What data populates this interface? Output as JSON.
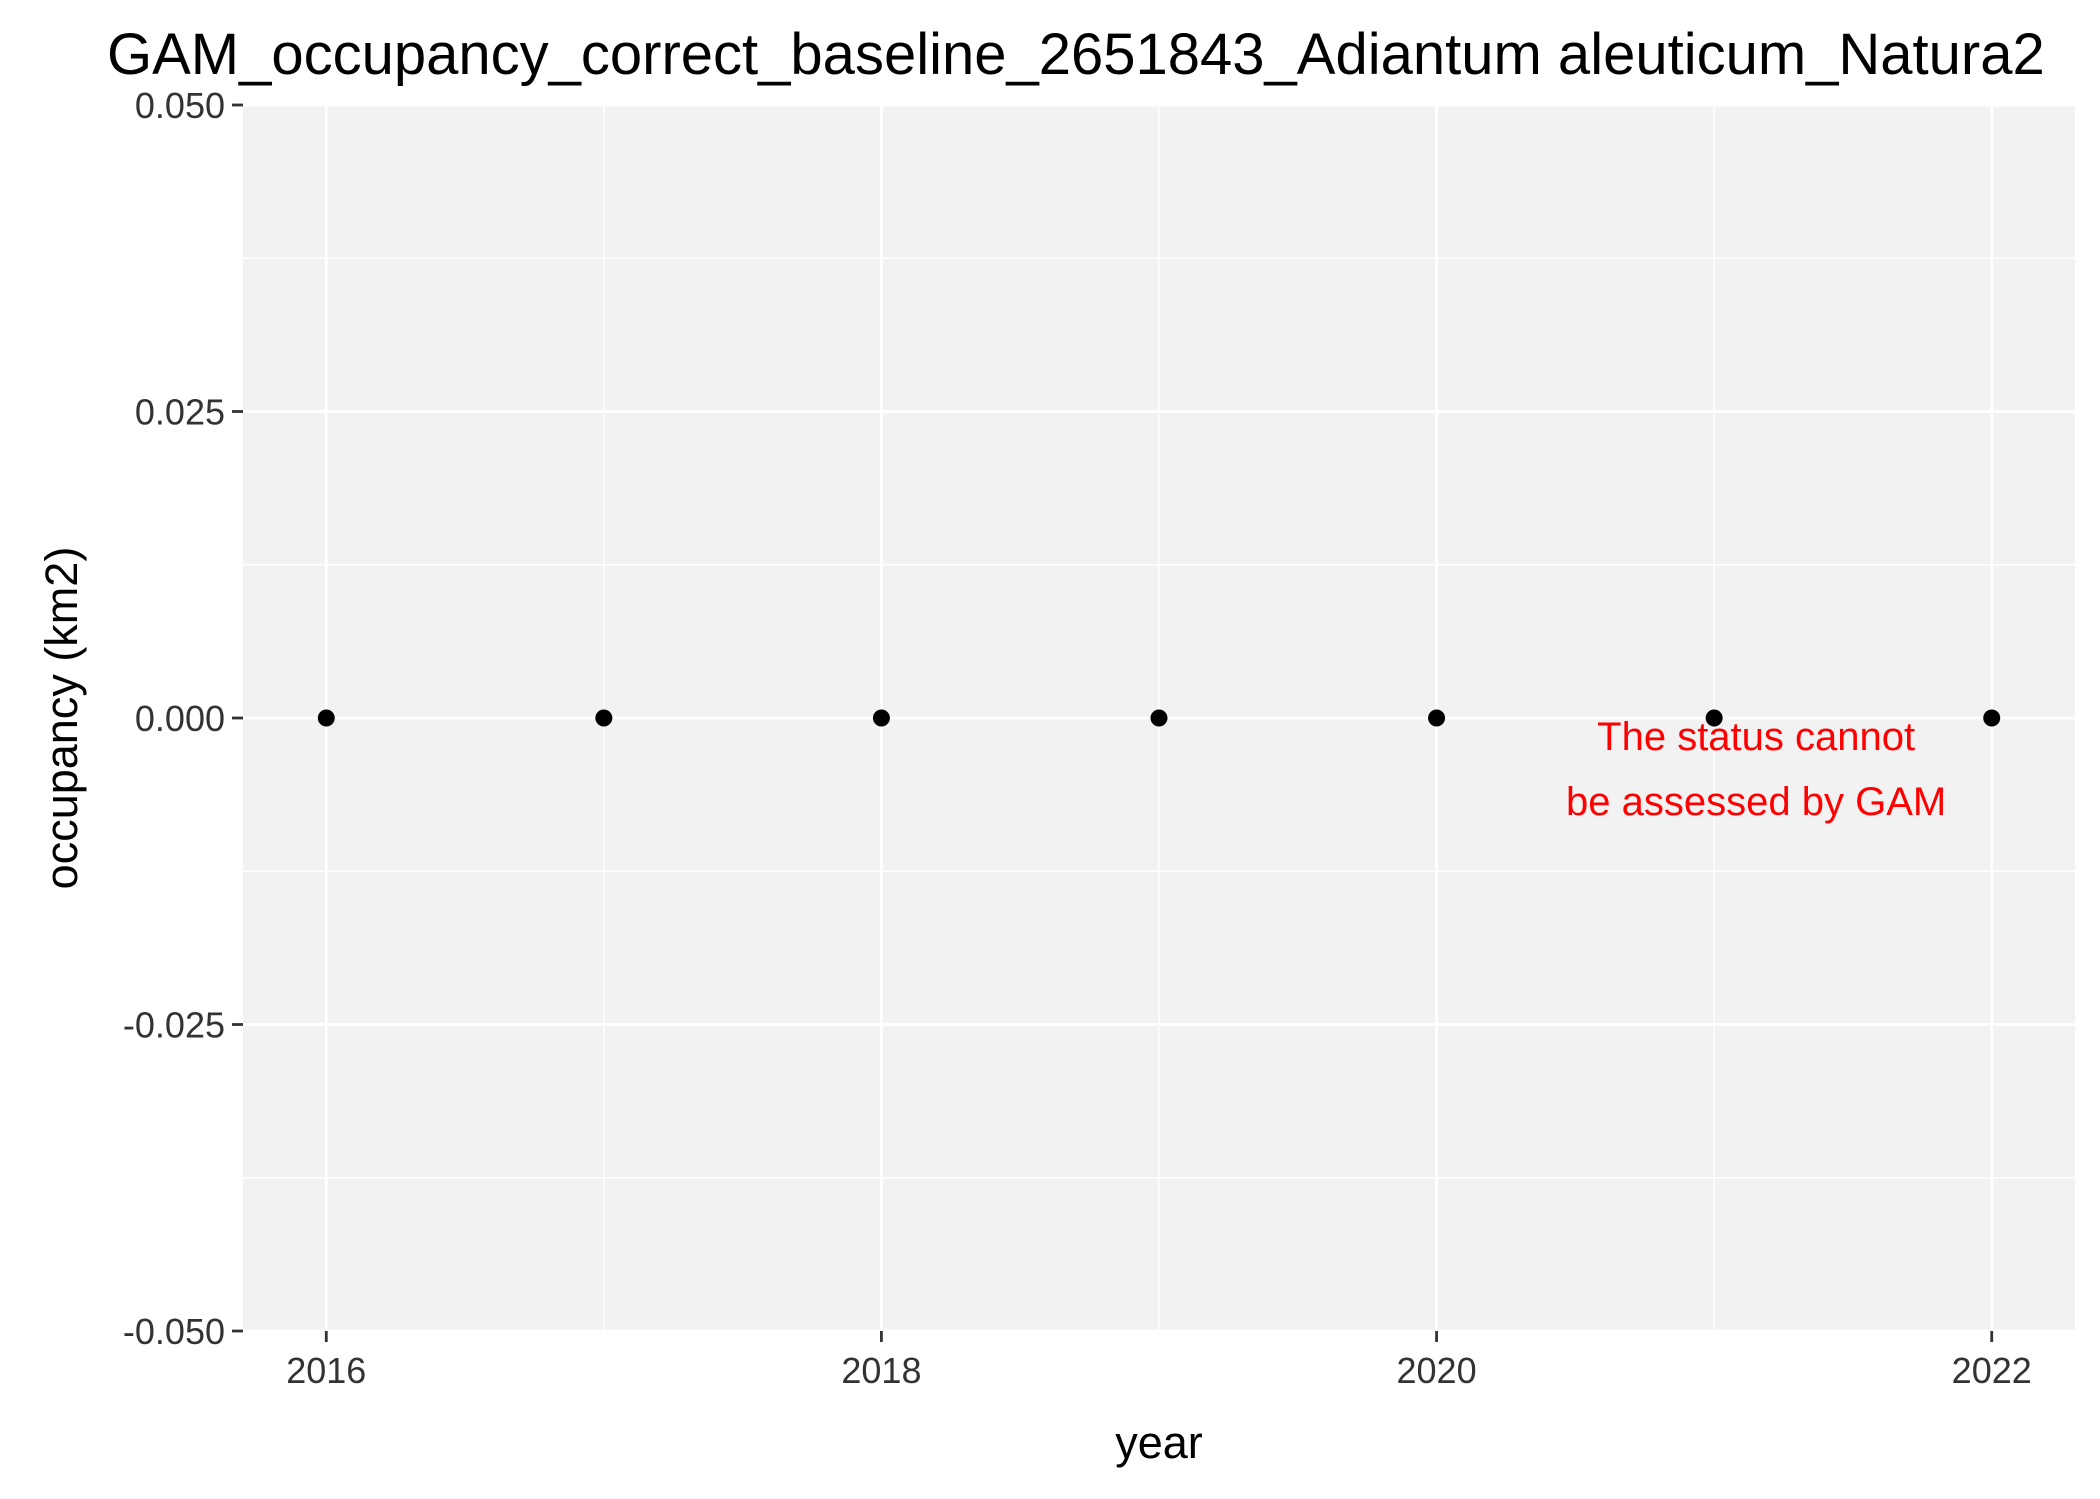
{
  "chart_data": {
    "type": "scatter",
    "title": "GAM_occupancy_correct_baseline_2651843_Adiantum aleuticum_Natura2",
    "xlabel": "year",
    "ylabel": "occupancy (km2)",
    "x": [
      2016,
      2017,
      2018,
      2019,
      2020,
      2021,
      2022
    ],
    "y": [
      0,
      0,
      0,
      0,
      0,
      0,
      0
    ],
    "xlim": [
      2015.7,
      2022.3
    ],
    "ylim": [
      -0.05,
      0.05
    ],
    "x_ticks": [
      2016,
      2018,
      2020,
      2022
    ],
    "x_tick_labels": [
      "2016",
      "2018",
      "2020",
      "2022"
    ],
    "y_ticks": [
      0.05,
      0.025,
      0,
      -0.025,
      -0.05
    ],
    "y_tick_labels": [
      "0.050",
      "0.025",
      "0.000",
      "-0.025",
      "-0.050"
    ],
    "grid": true,
    "panel_background": "#f2f2f2",
    "grid_color": "#ffffff",
    "point_color": "#000000",
    "annotation": {
      "lines": [
        "The status cannot",
        "be assessed by GAM"
      ],
      "x": 2021,
      "y": 0,
      "color": "#ff0000"
    }
  }
}
